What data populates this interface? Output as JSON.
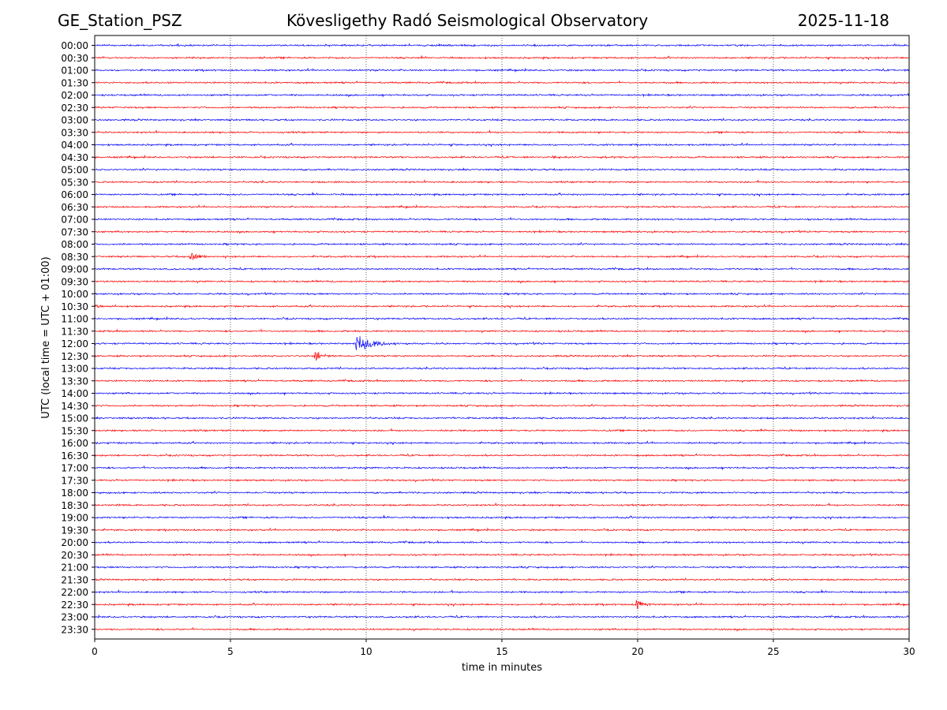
{
  "header": {
    "station": "GE_Station_PSZ",
    "observatory": "Kövesligethy Radó Seismological Observatory",
    "date": "2025-11-18"
  },
  "chart_data": {
    "type": "line",
    "title": "Kövesligethy Radó Seismological Observatory",
    "xlabel": "time in minutes",
    "ylabel": "UTC (local time = UTC + 01:00)",
    "xlim": [
      0,
      30
    ],
    "x_ticks": [
      0,
      5,
      10,
      15,
      20,
      25,
      30
    ],
    "grid": "vertical dotted lines at x ticks",
    "colors": [
      "#0000ff",
      "#ff0000"
    ],
    "rows": [
      "00:00",
      "00:30",
      "01:00",
      "01:30",
      "02:00",
      "02:30",
      "03:00",
      "03:30",
      "04:00",
      "04:30",
      "05:00",
      "05:30",
      "06:00",
      "06:30",
      "07:00",
      "07:30",
      "08:00",
      "08:30",
      "09:00",
      "09:30",
      "10:00",
      "10:30",
      "11:00",
      "11:30",
      "12:00",
      "12:30",
      "13:00",
      "13:30",
      "14:00",
      "14:30",
      "15:00",
      "15:30",
      "16:00",
      "16:30",
      "17:00",
      "17:30",
      "18:00",
      "18:30",
      "19:00",
      "19:30",
      "20:00",
      "20:30",
      "21:00",
      "21:30",
      "22:00",
      "22:30",
      "23:00",
      "23:30"
    ],
    "noise_amplitude": 0.06,
    "events": [
      {
        "row": "00:00",
        "start_min": 3.0,
        "duration_min": 2.0,
        "amplitude": 0.12
      },
      {
        "row": "04:00",
        "start_min": 17.8,
        "duration_min": 0.4,
        "amplitude": 0.15
      },
      {
        "row": "04:30",
        "start_min": 16.8,
        "duration_min": 2.2,
        "amplitude": 0.15
      },
      {
        "row": "08:30",
        "start_min": 3.5,
        "duration_min": 1.2,
        "amplitude": 0.45
      },
      {
        "row": "10:30",
        "start_min": 0.0,
        "duration_min": 0.8,
        "amplitude": 0.2
      },
      {
        "row": "12:00",
        "start_min": 9.6,
        "duration_min": 1.8,
        "amplitude": 1.0
      },
      {
        "row": "12:30",
        "start_min": 8.1,
        "duration_min": 0.9,
        "amplitude": 0.6
      },
      {
        "row": "13:00",
        "start_min": 13.7,
        "duration_min": 0.8,
        "amplitude": 0.15
      },
      {
        "row": "22:30",
        "start_min": 19.9,
        "duration_min": 1.3,
        "amplitude": 0.45
      }
    ]
  }
}
